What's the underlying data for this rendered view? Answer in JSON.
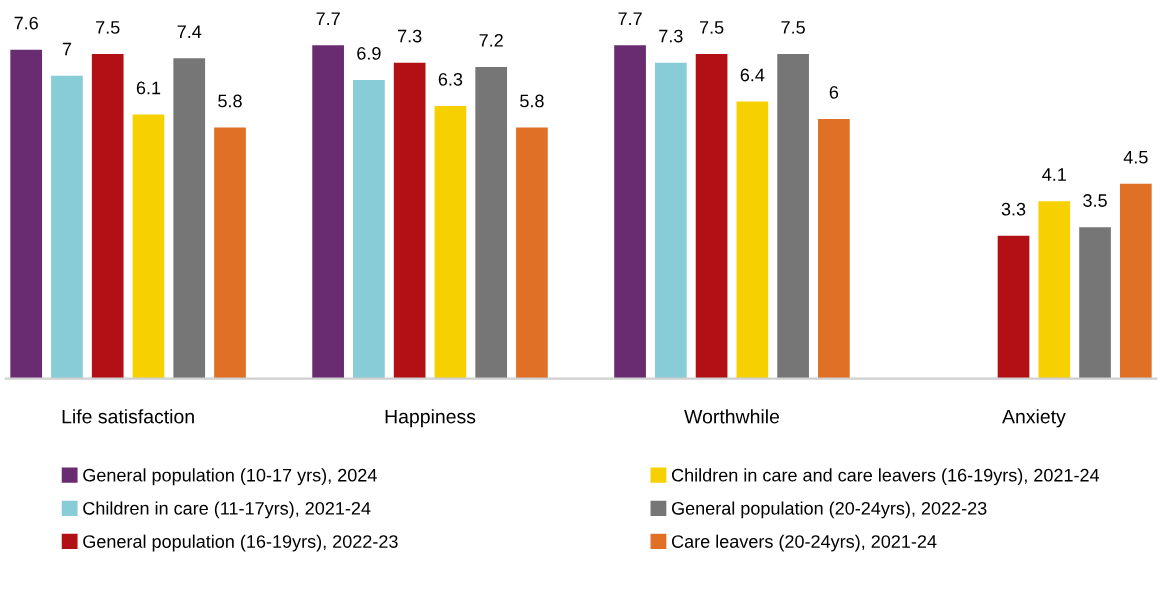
{
  "chart_data": {
    "type": "bar",
    "categories": [
      "Life satisfaction",
      "Happiness",
      "Worthwhile",
      "Anxiety"
    ],
    "series": [
      {
        "name": "General population (10-17 yrs), 2024",
        "color": "#6a2c70",
        "values": [
          7.6,
          7.7,
          7.7,
          null
        ]
      },
      {
        "name": "Children in care (11-17yrs), 2021-24",
        "color": "#88ccd8",
        "values": [
          7,
          6.9,
          7.3,
          null
        ]
      },
      {
        "name": "General population (16-19yrs), 2022-23",
        "color": "#b31015",
        "values": [
          7.5,
          7.3,
          7.5,
          3.3
        ]
      },
      {
        "name": "Children in care and care leavers (16-19yrs), 2021-24",
        "color": "#f7d000",
        "values": [
          6.1,
          6.3,
          6.4,
          4.1
        ]
      },
      {
        "name": "General population (20-24yrs), 2022-23",
        "color": "#767676",
        "values": [
          7.4,
          7.2,
          7.5,
          3.5
        ]
      },
      {
        "name": "Care leavers (20-24yrs), 2021-24",
        "color": "#e07025",
        "values": [
          5.8,
          5.8,
          6,
          4.5
        ]
      }
    ],
    "data_labels": true,
    "grid": false,
    "legend": "bottom"
  }
}
